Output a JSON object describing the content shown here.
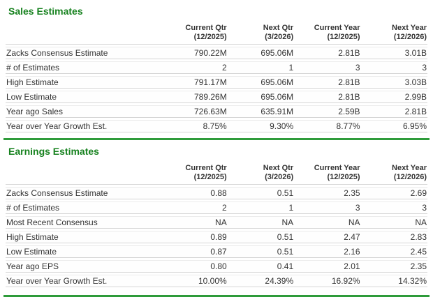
{
  "colors": {
    "title_green": "#17821f",
    "divider_green": "#2e9b3a",
    "text_color": "#333333",
    "row_border_top": "#ebebeb",
    "row_border_bottom": "#d5d5d5",
    "header_border": "#d8d8d8"
  },
  "sections": [
    {
      "title": "Sales Estimates",
      "columns": [
        {
          "label": "Current Qtr",
          "period": "(12/2025)"
        },
        {
          "label": "Next Qtr",
          "period": "(3/2026)"
        },
        {
          "label": "Current Year",
          "period": "(12/2025)"
        },
        {
          "label": "Next Year",
          "period": "(12/2026)"
        }
      ],
      "rows": [
        {
          "label": "Zacks Consensus Estimate",
          "values": [
            "790.22M",
            "695.06M",
            "2.81B",
            "3.01B"
          ]
        },
        {
          "label": "# of Estimates",
          "values": [
            "2",
            "1",
            "3",
            "3"
          ]
        },
        {
          "label": "High Estimate",
          "values": [
            "791.17M",
            "695.06M",
            "2.81B",
            "3.03B"
          ]
        },
        {
          "label": "Low Estimate",
          "values": [
            "789.26M",
            "695.06M",
            "2.81B",
            "2.99B"
          ]
        },
        {
          "label": "Year ago Sales",
          "values": [
            "726.63M",
            "635.91M",
            "2.59B",
            "2.81B"
          ]
        },
        {
          "label": "Year over Year Growth Est.",
          "values": [
            "8.75%",
            "9.30%",
            "8.77%",
            "6.95%"
          ]
        }
      ]
    },
    {
      "title": "Earnings Estimates",
      "columns": [
        {
          "label": "Current Qtr",
          "period": "(12/2025)"
        },
        {
          "label": "Next Qtr",
          "period": "(3/2026)"
        },
        {
          "label": "Current Year",
          "period": "(12/2025)"
        },
        {
          "label": "Next Year",
          "period": "(12/2026)"
        }
      ],
      "rows": [
        {
          "label": "Zacks Consensus Estimate",
          "values": [
            "0.88",
            "0.51",
            "2.35",
            "2.69"
          ]
        },
        {
          "label": "# of Estimates",
          "values": [
            "2",
            "1",
            "3",
            "3"
          ]
        },
        {
          "label": "Most Recent Consensus",
          "values": [
            "NA",
            "NA",
            "NA",
            "NA"
          ]
        },
        {
          "label": "High Estimate",
          "values": [
            "0.89",
            "0.51",
            "2.47",
            "2.83"
          ]
        },
        {
          "label": "Low Estimate",
          "values": [
            "0.87",
            "0.51",
            "2.16",
            "2.45"
          ]
        },
        {
          "label": "Year ago EPS",
          "values": [
            "0.80",
            "0.41",
            "2.01",
            "2.35"
          ]
        },
        {
          "label": "Year over Year Growth Est.",
          "values": [
            "10.00%",
            "24.39%",
            "16.92%",
            "14.32%"
          ]
        }
      ]
    }
  ]
}
